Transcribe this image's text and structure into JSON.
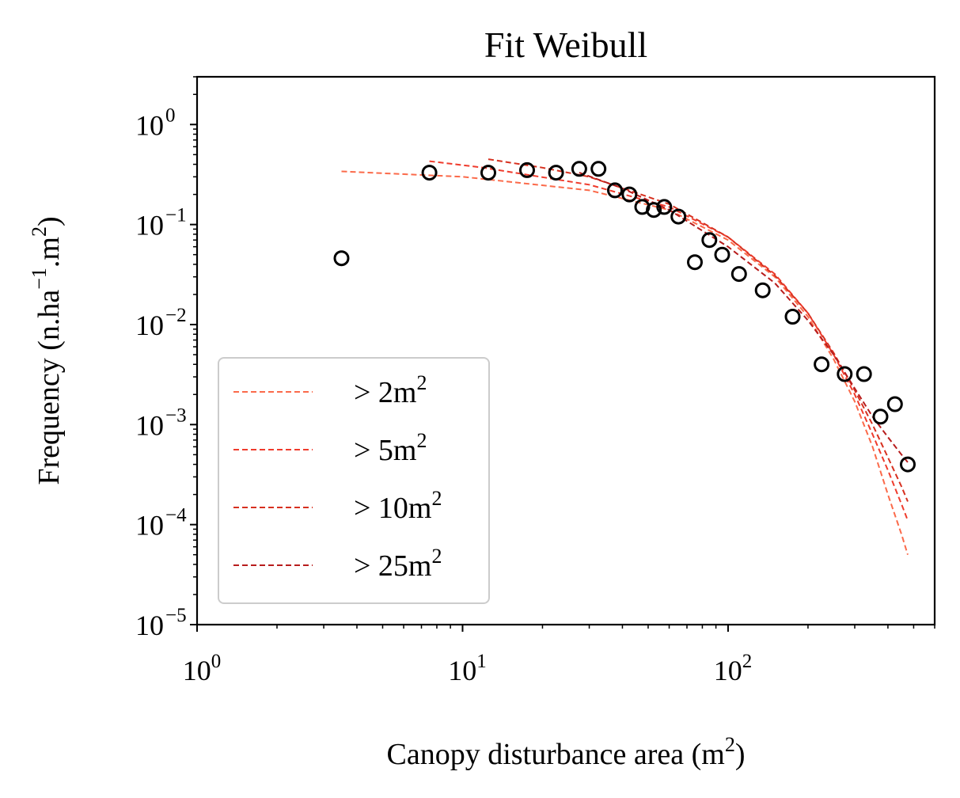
{
  "chart_data": {
    "type": "scatter",
    "title": "Fit Weibull",
    "xlabel": "Canopy disturbance area (m",
    "xlabel_sup": "2",
    "xlabel_close": ")",
    "ylabel": "Frequency (n.ha",
    "ylabel_sup1": "−1",
    "ylabel_mid": ".m",
    "ylabel_sup2": "2",
    "ylabel_close": ")",
    "xscale": "log",
    "yscale": "log",
    "xlim": [
      1,
      600
    ],
    "ylim": [
      1e-05,
      3
    ],
    "x_ticks": [
      {
        "value": 1,
        "base": "10",
        "exp": "0"
      },
      {
        "value": 10,
        "base": "10",
        "exp": "1"
      },
      {
        "value": 100,
        "base": "10",
        "exp": "2"
      }
    ],
    "y_ticks": [
      {
        "value": 1,
        "base": "10",
        "exp": "0"
      },
      {
        "value": 0.1,
        "base": "10",
        "exp": "−1"
      },
      {
        "value": 0.01,
        "base": "10",
        "exp": "−2"
      },
      {
        "value": 0.001,
        "base": "10",
        "exp": "−3"
      },
      {
        "value": 0.0001,
        "base": "10",
        "exp": "−4"
      },
      {
        "value": 1e-05,
        "base": "10",
        "exp": "−5"
      }
    ],
    "grid": false,
    "legend_position": "lower-left",
    "points": {
      "x": [
        3.5,
        7.5,
        12.5,
        17.5,
        22.5,
        27.5,
        32.5,
        37.5,
        42.5,
        47.5,
        52.5,
        57.5,
        65,
        85,
        75,
        95,
        110,
        135,
        175,
        225,
        275,
        325,
        375,
        425,
        475
      ],
      "y": [
        0.046,
        0.33,
        0.33,
        0.35,
        0.33,
        0.36,
        0.36,
        0.22,
        0.2,
        0.15,
        0.14,
        0.15,
        0.12,
        0.07,
        0.042,
        0.05,
        0.032,
        0.022,
        0.012,
        0.004,
        0.0032,
        0.0032,
        0.0012,
        0.0016,
        0.0004
      ]
    },
    "series": [
      {
        "label_prefix": "> 2m",
        "label_sup": "2",
        "color": "#fb6a4a",
        "x": [
          3.5,
          10,
          30,
          60,
          100,
          150,
          200,
          250,
          300,
          350,
          400,
          450,
          475
        ],
        "y": [
          0.34,
          0.3,
          0.22,
          0.14,
          0.07,
          0.03,
          0.012,
          0.0045,
          0.0017,
          0.0006,
          0.0002,
          8e-05,
          5e-05
        ]
      },
      {
        "label_prefix": "> 5m",
        "label_sup": "2",
        "color": "#ef3b2c",
        "x": [
          7.5,
          12,
          30,
          60,
          100,
          150,
          200,
          250,
          300,
          350,
          400,
          450,
          475
        ],
        "y": [
          0.43,
          0.37,
          0.25,
          0.15,
          0.075,
          0.032,
          0.013,
          0.005,
          0.002,
          0.0008,
          0.00035,
          0.00016,
          0.00011
        ]
      },
      {
        "label_prefix": "> 10m",
        "label_sup": "2",
        "color": "#d7301f",
        "x": [
          12.5,
          20,
          30,
          60,
          100,
          150,
          200,
          250,
          300,
          350,
          400,
          450,
          475
        ],
        "y": [
          0.45,
          0.37,
          0.3,
          0.16,
          0.075,
          0.031,
          0.013,
          0.0052,
          0.0022,
          0.001,
          0.00047,
          0.00024,
          0.00017
        ]
      },
      {
        "label_prefix": "> 25m",
        "label_sup": "2",
        "color": "#b71c1c",
        "x": [
          27.5,
          40,
          60,
          100,
          150,
          200,
          250,
          300,
          350,
          400,
          450,
          475
        ],
        "y": [
          0.33,
          0.23,
          0.14,
          0.06,
          0.026,
          0.011,
          0.005,
          0.0023,
          0.0012,
          0.00075,
          0.0005,
          0.00042
        ]
      }
    ]
  }
}
